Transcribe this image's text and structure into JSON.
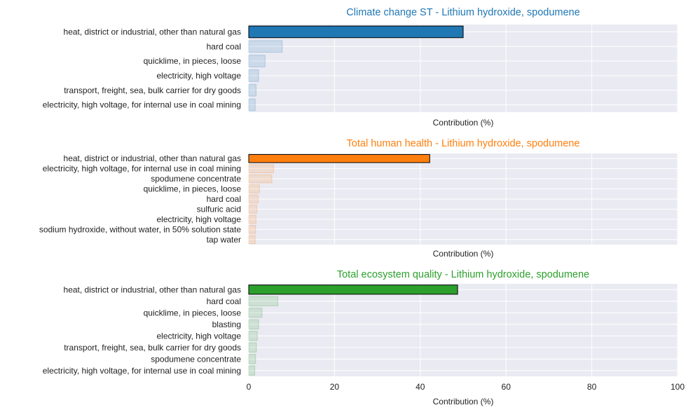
{
  "chart_data": [
    {
      "type": "bar",
      "orientation": "horizontal",
      "title": "Climate change ST - Lithium hydroxide, spodumene",
      "title_color": "#1f77b4",
      "bar_color": "#1f77b4",
      "xlabel": "Contribution (%)",
      "xlim": [
        0,
        100
      ],
      "show_xticks": false,
      "grid": true,
      "categories": [
        "heat, district or industrial, other than natural gas",
        "hard coal",
        "quicklime, in pieces, loose",
        "electricity, high voltage",
        "transport, freight, sea, bulk carrier for dry goods",
        "electricity, high voltage, for internal use in coal mining"
      ],
      "values": [
        50.0,
        7.8,
        3.8,
        2.3,
        1.7,
        1.5
      ],
      "highlighted": "heat, district or industrial, other than natural gas"
    },
    {
      "type": "bar",
      "orientation": "horizontal",
      "title": "Total human health - Lithium hydroxide, spodumene",
      "title_color": "#ff7f0e",
      "bar_color": "#ff7f0e",
      "xlabel": "Contribution (%)",
      "xlim": [
        0,
        100
      ],
      "show_xticks": false,
      "grid": true,
      "categories": [
        "heat, district or industrial, other than natural gas",
        "electricity, high voltage, for internal use in coal mining",
        "spodumene concentrate",
        "quicklime, in pieces, loose",
        "hard coal",
        "sulfuric acid",
        "electricity, high voltage",
        "sodium hydroxide, without water, in 50% solution state",
        "tap water"
      ],
      "values": [
        42.2,
        5.8,
        5.4,
        2.5,
        2.2,
        1.9,
        1.7,
        1.6,
        1.5
      ],
      "highlighted": "heat, district or industrial, other than natural gas"
    },
    {
      "type": "bar",
      "orientation": "horizontal",
      "title": "Total ecosystem quality - Lithium hydroxide, spodumene",
      "title_color": "#2ca02c",
      "bar_color": "#2ca02c",
      "xlabel": "Contribution (%)",
      "xlim": [
        0,
        100
      ],
      "xticks": [
        0,
        20,
        40,
        60,
        80,
        100
      ],
      "show_xticks": true,
      "grid": true,
      "categories": [
        "heat, district or industrial, other than natural gas",
        "hard coal",
        "quicklime, in pieces, loose",
        "blasting",
        "electricity, high voltage",
        "transport, freight, sea, bulk carrier for dry goods",
        "spodumene concentrate",
        "electricity, high voltage, for internal use in coal mining"
      ],
      "values": [
        48.7,
        6.8,
        3.1,
        2.3,
        2.0,
        1.8,
        1.6,
        1.4
      ],
      "highlighted": "heat, district or industrial, other than natural gas"
    }
  ]
}
